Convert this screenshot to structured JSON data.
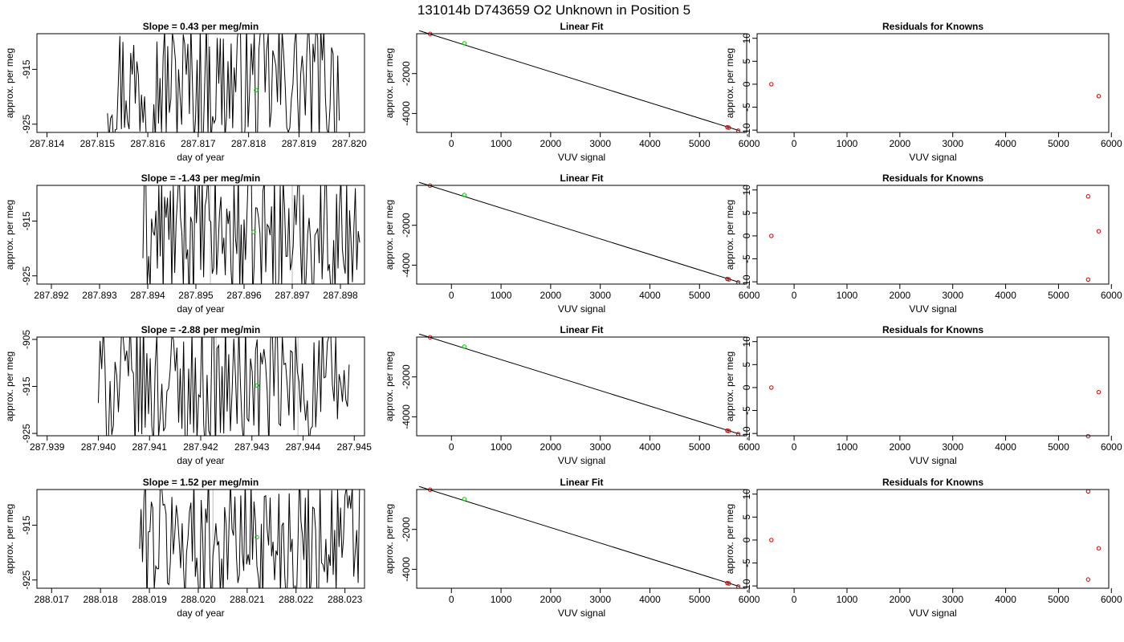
{
  "figure": {
    "title": "131014b      D743659   O2 Unknown in Position  5"
  },
  "rows": [
    {
      "time_panel": {
        "title": "Slope =  0.43  per meg/min",
        "xlabel": "day of year",
        "ylabel": "approx. per meg",
        "xlim": [
          287.8138,
          287.8203
        ],
        "ylim": [
          -926.5,
          -908.5
        ],
        "xticks": [
          "287.814",
          "287.815",
          "287.816",
          "287.817",
          "287.818",
          "287.819",
          "287.820"
        ],
        "yticks": [
          "-915",
          "-925"
        ],
        "vlines": [
          287.8172
        ],
        "fit_point": [
          287.81815,
          -918.8
        ],
        "series_start": 287.8152,
        "series_end": 287.8198
      },
      "fit_panel": {
        "title": "Linear Fit",
        "xlabel": "VUV signal",
        "ylabel": "approx. per meg",
        "xticks": [
          "0",
          "1000",
          "2000",
          "3000",
          "4000",
          "5000",
          "6000"
        ],
        "yticks": [
          "-2000",
          "-4000"
        ],
        "xlim": [
          -700,
          5950
        ],
        "ylim": [
          -4950,
          0
        ],
        "line": [
          [
            -650,
            150
          ],
          [
            5800,
            -4860
          ]
        ],
        "knowns": [
          [
            -430,
            -10
          ],
          [
            5560,
            -4690
          ],
          [
            5590,
            -4710
          ],
          [
            5780,
            -4860
          ]
        ],
        "unknown": [
          [
            260,
            -480
          ]
        ]
      },
      "resid_panel": {
        "title": "Residuals for Knowns",
        "xlabel": "VUV signal",
        "ylabel": "approx. per meg",
        "xticks": [
          "0",
          "1000",
          "2000",
          "3000",
          "4000",
          "5000",
          "6000"
        ],
        "yticks": [
          "10",
          "5",
          "0",
          "-5",
          "-10"
        ],
        "xlim": [
          -700,
          5950
        ],
        "ylim": [
          -10.5,
          11
        ],
        "points": [
          [
            -430,
            0
          ],
          [
            5760,
            -2.6
          ]
        ]
      }
    },
    {
      "time_panel": {
        "title": "Slope =  -1.43  per meg/min",
        "xlabel": "day of year",
        "ylabel": "approx. per meg",
        "xlim": [
          287.8917,
          287.8985
        ],
        "ylim": [
          -926.5,
          -908.5
        ],
        "xticks": [
          "287.892",
          "287.893",
          "287.894",
          "287.895",
          "287.896",
          "287.897",
          "287.898"
        ],
        "yticks": [
          "-915",
          "-925"
        ],
        "vlines": [
          287.8953,
          287.897
        ],
        "fit_point": [
          287.8962,
          -917.0
        ],
        "series_start": 287.8939,
        "series_end": 287.8984
      },
      "fit_panel": {
        "title": "Linear Fit",
        "xlabel": "VUV signal",
        "ylabel": "approx. per meg",
        "xticks": [
          "0",
          "1000",
          "2000",
          "3000",
          "4000",
          "5000",
          "6000"
        ],
        "yticks": [
          "-2000",
          "-4000"
        ],
        "xlim": [
          -700,
          5950
        ],
        "ylim": [
          -4950,
          0
        ],
        "line": [
          [
            -650,
            150
          ],
          [
            5800,
            -4860
          ]
        ],
        "knowns": [
          [
            -430,
            -10
          ],
          [
            5560,
            -4690
          ],
          [
            5590,
            -4710
          ],
          [
            5780,
            -4860
          ]
        ],
        "unknown": [
          [
            260,
            -480
          ]
        ]
      },
      "resid_panel": {
        "title": "Residuals for Knowns",
        "xlabel": "VUV signal",
        "ylabel": "approx. per meg",
        "xticks": [
          "0",
          "1000",
          "2000",
          "3000",
          "4000",
          "5000",
          "6000"
        ],
        "yticks": [
          "10",
          "5",
          "0",
          "-5",
          "-10"
        ],
        "xlim": [
          -700,
          5950
        ],
        "ylim": [
          -10.5,
          11
        ],
        "points": [
          [
            -430,
            0
          ],
          [
            5560,
            8.6
          ],
          [
            5560,
            -9.5
          ],
          [
            5760,
            1.0
          ]
        ]
      }
    },
    {
      "time_panel": {
        "title": "Slope =  -2.88  per meg/min",
        "xlabel": "day of year",
        "ylabel": "approx. per meg",
        "xlim": [
          287.9388,
          287.9452
        ],
        "ylim": [
          -925.5,
          -904.5
        ],
        "xticks": [
          "287.939",
          "287.940",
          "287.941",
          "287.942",
          "287.943",
          "287.944",
          "287.945"
        ],
        "yticks": [
          "-905",
          "-915",
          "-925"
        ],
        "vlines": [
          287.9423,
          287.9439
        ],
        "fit_point": [
          287.9431,
          -914.8
        ],
        "series_start": 287.94,
        "series_end": 287.9449
      },
      "fit_panel": {
        "title": "Linear Fit",
        "xlabel": "VUV signal",
        "ylabel": "approx. per meg",
        "xticks": [
          "0",
          "1000",
          "2000",
          "3000",
          "4000",
          "5000",
          "6000"
        ],
        "yticks": [
          "-2000",
          "-4000"
        ],
        "xlim": [
          -700,
          5950
        ],
        "ylim": [
          -4950,
          0
        ],
        "line": [
          [
            -650,
            150
          ],
          [
            5800,
            -4860
          ]
        ],
        "knowns": [
          [
            -430,
            -10
          ],
          [
            5560,
            -4690
          ],
          [
            5590,
            -4710
          ],
          [
            5780,
            -4860
          ]
        ],
        "unknown": [
          [
            260,
            -480
          ]
        ]
      },
      "resid_panel": {
        "title": "Residuals for Knowns",
        "xlabel": "VUV signal",
        "ylabel": "approx. per meg",
        "xticks": [
          "0",
          "1000",
          "2000",
          "3000",
          "4000",
          "5000",
          "6000"
        ],
        "yticks": [
          "10",
          "5",
          "0",
          "-5",
          "-10"
        ],
        "xlim": [
          -700,
          5950
        ],
        "ylim": [
          -10.5,
          11
        ],
        "points": [
          [
            -430,
            0
          ],
          [
            5760,
            -1.0
          ],
          [
            5560,
            -10.6
          ]
        ]
      }
    },
    {
      "time_panel": {
        "title": "Slope =  1.52  per meg/min",
        "xlabel": "day of year",
        "ylabel": "approx. per meg",
        "xlim": [
          288.0167,
          288.0234
        ],
        "ylim": [
          -926.5,
          -908.5
        ],
        "xticks": [
          "288.017",
          "288.018",
          "288.019",
          "288.020",
          "288.021",
          "288.022",
          "288.023"
        ],
        "yticks": [
          "-915",
          "-925"
        ],
        "vlines": [
          288.0203,
          288.0221
        ],
        "fit_point": [
          288.0212,
          -917.2
        ],
        "series_start": 288.0188,
        "series_end": 288.0233
      },
      "fit_panel": {
        "title": "Linear Fit",
        "xlabel": "VUV signal",
        "ylabel": "approx. per meg",
        "xticks": [
          "0",
          "1000",
          "2000",
          "3000",
          "4000",
          "5000",
          "6000"
        ],
        "yticks": [
          "-2000",
          "-4000"
        ],
        "xlim": [
          -700,
          5950
        ],
        "ylim": [
          -4950,
          0
        ],
        "line": [
          [
            -650,
            150
          ],
          [
            5800,
            -4860
          ]
        ],
        "knowns": [
          [
            -430,
            -10
          ],
          [
            5560,
            -4690
          ],
          [
            5590,
            -4710
          ],
          [
            5780,
            -4860
          ]
        ],
        "unknown": [
          [
            260,
            -480
          ]
        ]
      },
      "resid_panel": {
        "title": "Residuals for Knowns",
        "xlabel": "VUV signal",
        "ylabel": "approx. per meg",
        "xticks": [
          "0",
          "1000",
          "2000",
          "3000",
          "4000",
          "5000",
          "6000"
        ],
        "yticks": [
          "10",
          "5",
          "0",
          "-5",
          "-10"
        ],
        "xlim": [
          -700,
          5950
        ],
        "ylim": [
          -10.5,
          11
        ],
        "points": [
          [
            -430,
            0
          ],
          [
            5560,
            10.6
          ],
          [
            5760,
            -1.8
          ],
          [
            5560,
            -8.6
          ]
        ]
      }
    }
  ],
  "chart_data": {
    "type": "line",
    "title": "131014b      D743659   O2 Unknown in Position  5",
    "panels": "4 rows x 3 columns: time series (day of year vs approx. per meg), Linear Fit (VUV signal vs approx. per meg), Residuals for Knowns (VUV signal vs residual)",
    "slopes": [
      0.43,
      -1.43,
      -2.88,
      1.52
    ],
    "grid": false,
    "colors": {
      "series": "#000000",
      "knowns": "#cc0000",
      "unknown": "#00cc00",
      "vline": "#bbbbbb"
    }
  }
}
